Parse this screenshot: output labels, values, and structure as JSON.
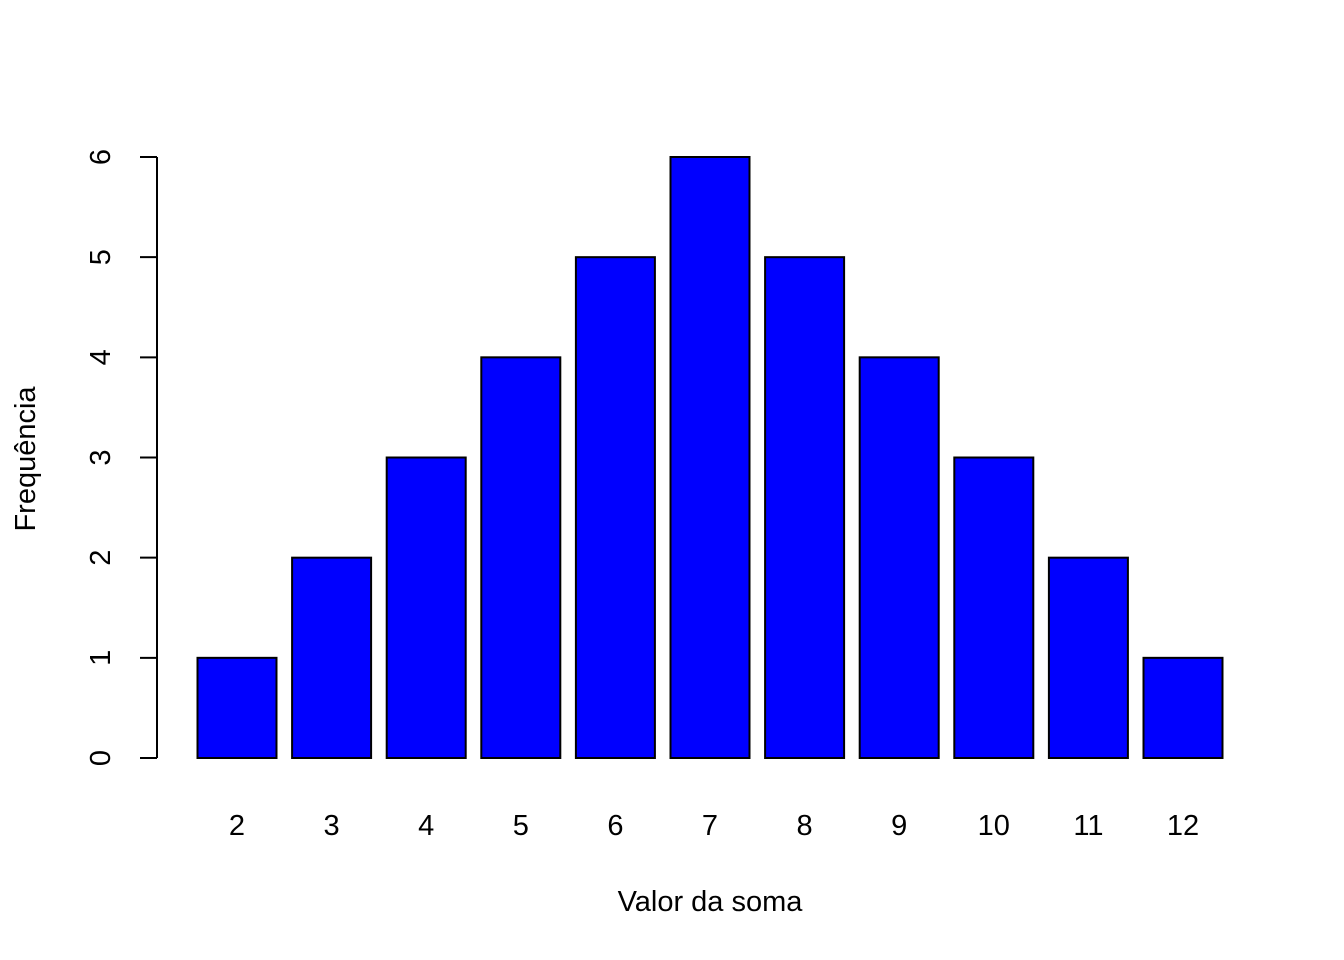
{
  "chart_data": {
    "type": "bar",
    "title": "",
    "xlabel": "Valor da soma",
    "ylabel": "Frequência",
    "categories": [
      "2",
      "3",
      "4",
      "5",
      "6",
      "7",
      "8",
      "9",
      "10",
      "11",
      "12"
    ],
    "values": [
      1,
      2,
      3,
      4,
      5,
      6,
      5,
      4,
      3,
      2,
      1
    ],
    "ylim": [
      0,
      6
    ],
    "yticks": [
      "0",
      "1",
      "2",
      "3",
      "4",
      "5",
      "6"
    ],
    "grid": false,
    "legend": "none",
    "bar_color": "#0000ff",
    "bar_border_color": "#000000"
  }
}
